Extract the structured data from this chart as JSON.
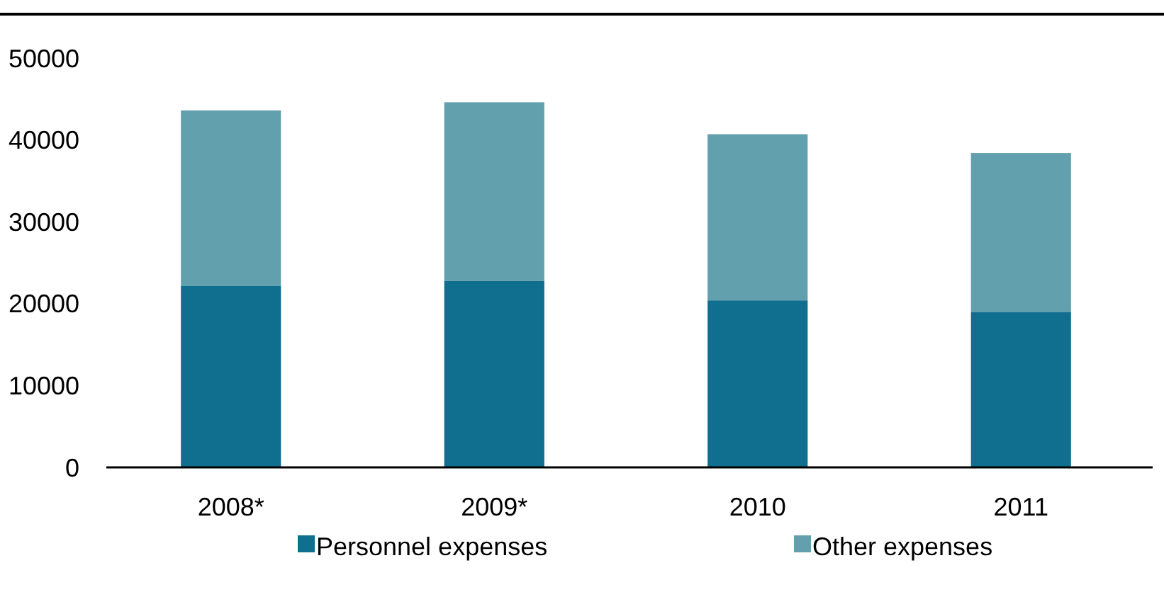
{
  "chart_data": {
    "type": "bar",
    "stacked": true,
    "categories": [
      "2008*",
      "2009*",
      "2010",
      "2011"
    ],
    "series": [
      {
        "name": "Personnel expenses",
        "color": "#106e8e",
        "values": [
          22200,
          22800,
          20400,
          19000
        ]
      },
      {
        "name": "Other expenses",
        "color": "#62a0ae",
        "values": [
          21400,
          21800,
          20300,
          19400
        ]
      }
    ],
    "ylim": [
      0,
      50000
    ],
    "yticks": [
      0,
      10000,
      20000,
      30000,
      40000,
      50000
    ],
    "legend": "bottom"
  }
}
